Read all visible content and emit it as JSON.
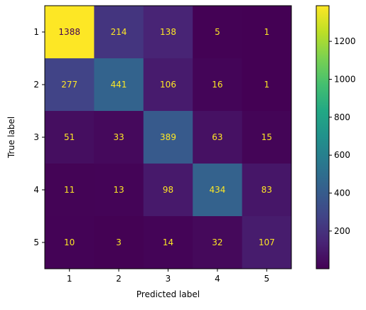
{
  "chart_data": {
    "type": "heatmap",
    "xlabel": "Predicted label",
    "ylabel": "True label",
    "x_categories": [
      "1",
      "2",
      "3",
      "4",
      "5"
    ],
    "y_categories": [
      "1",
      "2",
      "3",
      "4",
      "5"
    ],
    "matrix": [
      [
        1388,
        214,
        138,
        5,
        1
      ],
      [
        277,
        441,
        106,
        16,
        1
      ],
      [
        51,
        33,
        389,
        63,
        15
      ],
      [
        11,
        13,
        98,
        434,
        83
      ],
      [
        10,
        3,
        14,
        32,
        107
      ]
    ],
    "value_range": [
      1,
      1388
    ],
    "colormap": "viridis",
    "colorbar_ticks": [
      200,
      400,
      600,
      800,
      1000,
      1200
    ],
    "colorbar_tick_labels": [
      "200",
      "400",
      "600",
      "800",
      "1000",
      "1200"
    ],
    "annotation_colors": {
      "on_dark": "#fde725",
      "on_light": "#440154"
    },
    "grid": false
  }
}
